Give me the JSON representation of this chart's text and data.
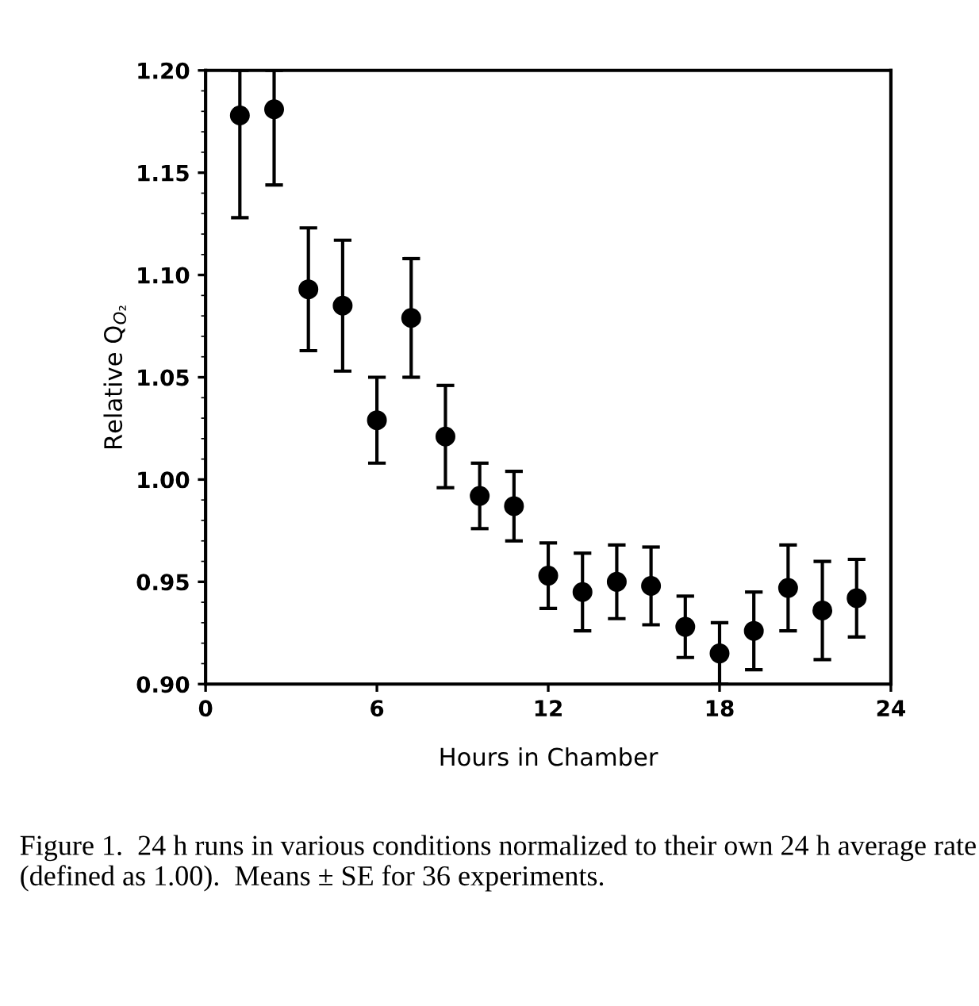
{
  "chart_data": {
    "type": "scatter",
    "xlabel": "Hours in Chamber",
    "ylabel": "Relative Q$_{O₂}$",
    "x": [
      1.2,
      2.4,
      3.6,
      4.8,
      6.0,
      7.2,
      8.4,
      9.6,
      10.8,
      12.0,
      13.2,
      14.4,
      15.6,
      16.8,
      18.0,
      19.2,
      20.4,
      21.6,
      22.8
    ],
    "values": [
      1.178,
      1.181,
      1.093,
      1.085,
      1.029,
      1.079,
      1.021,
      0.992,
      0.987,
      0.953,
      0.945,
      0.95,
      0.948,
      0.928,
      0.915,
      0.926,
      0.947,
      0.936,
      0.942
    ],
    "errors": [
      [
        1.128,
        1.2
      ],
      [
        1.144,
        1.2
      ],
      0.03,
      0.032,
      0.021,
      0.029,
      0.025,
      0.016,
      0.017,
      0.016,
      0.019,
      0.018,
      0.019,
      0.015,
      0.015,
      0.019,
      0.021,
      0.024,
      0.019
    ],
    "color": "#000000",
    "marker": "circle",
    "xlim": [
      0,
      24
    ],
    "xticks": [
      0,
      6,
      12,
      18,
      24
    ],
    "ylim": [
      0.9,
      1.2
    ],
    "yticks": [
      {
        "value": 0.9,
        "label": "0.90"
      },
      {
        "value": 0.95,
        "label": "0.95"
      },
      {
        "value": 1.0,
        "label": "1.00"
      },
      {
        "value": 1.05,
        "label": "1.05"
      },
      {
        "value": 1.1,
        "label": "1.10"
      },
      {
        "value": 1.15,
        "label": "1.15"
      },
      {
        "value": 1.2,
        "label": "1.20"
      }
    ],
    "grid": false,
    "legend": false,
    "annotations": [
      "Figure 1.  24 h runs in various conditions normalized to their own 24 h average rate (defined as 1.00).  Means ± SE for 36 experiments."
    ]
  }
}
